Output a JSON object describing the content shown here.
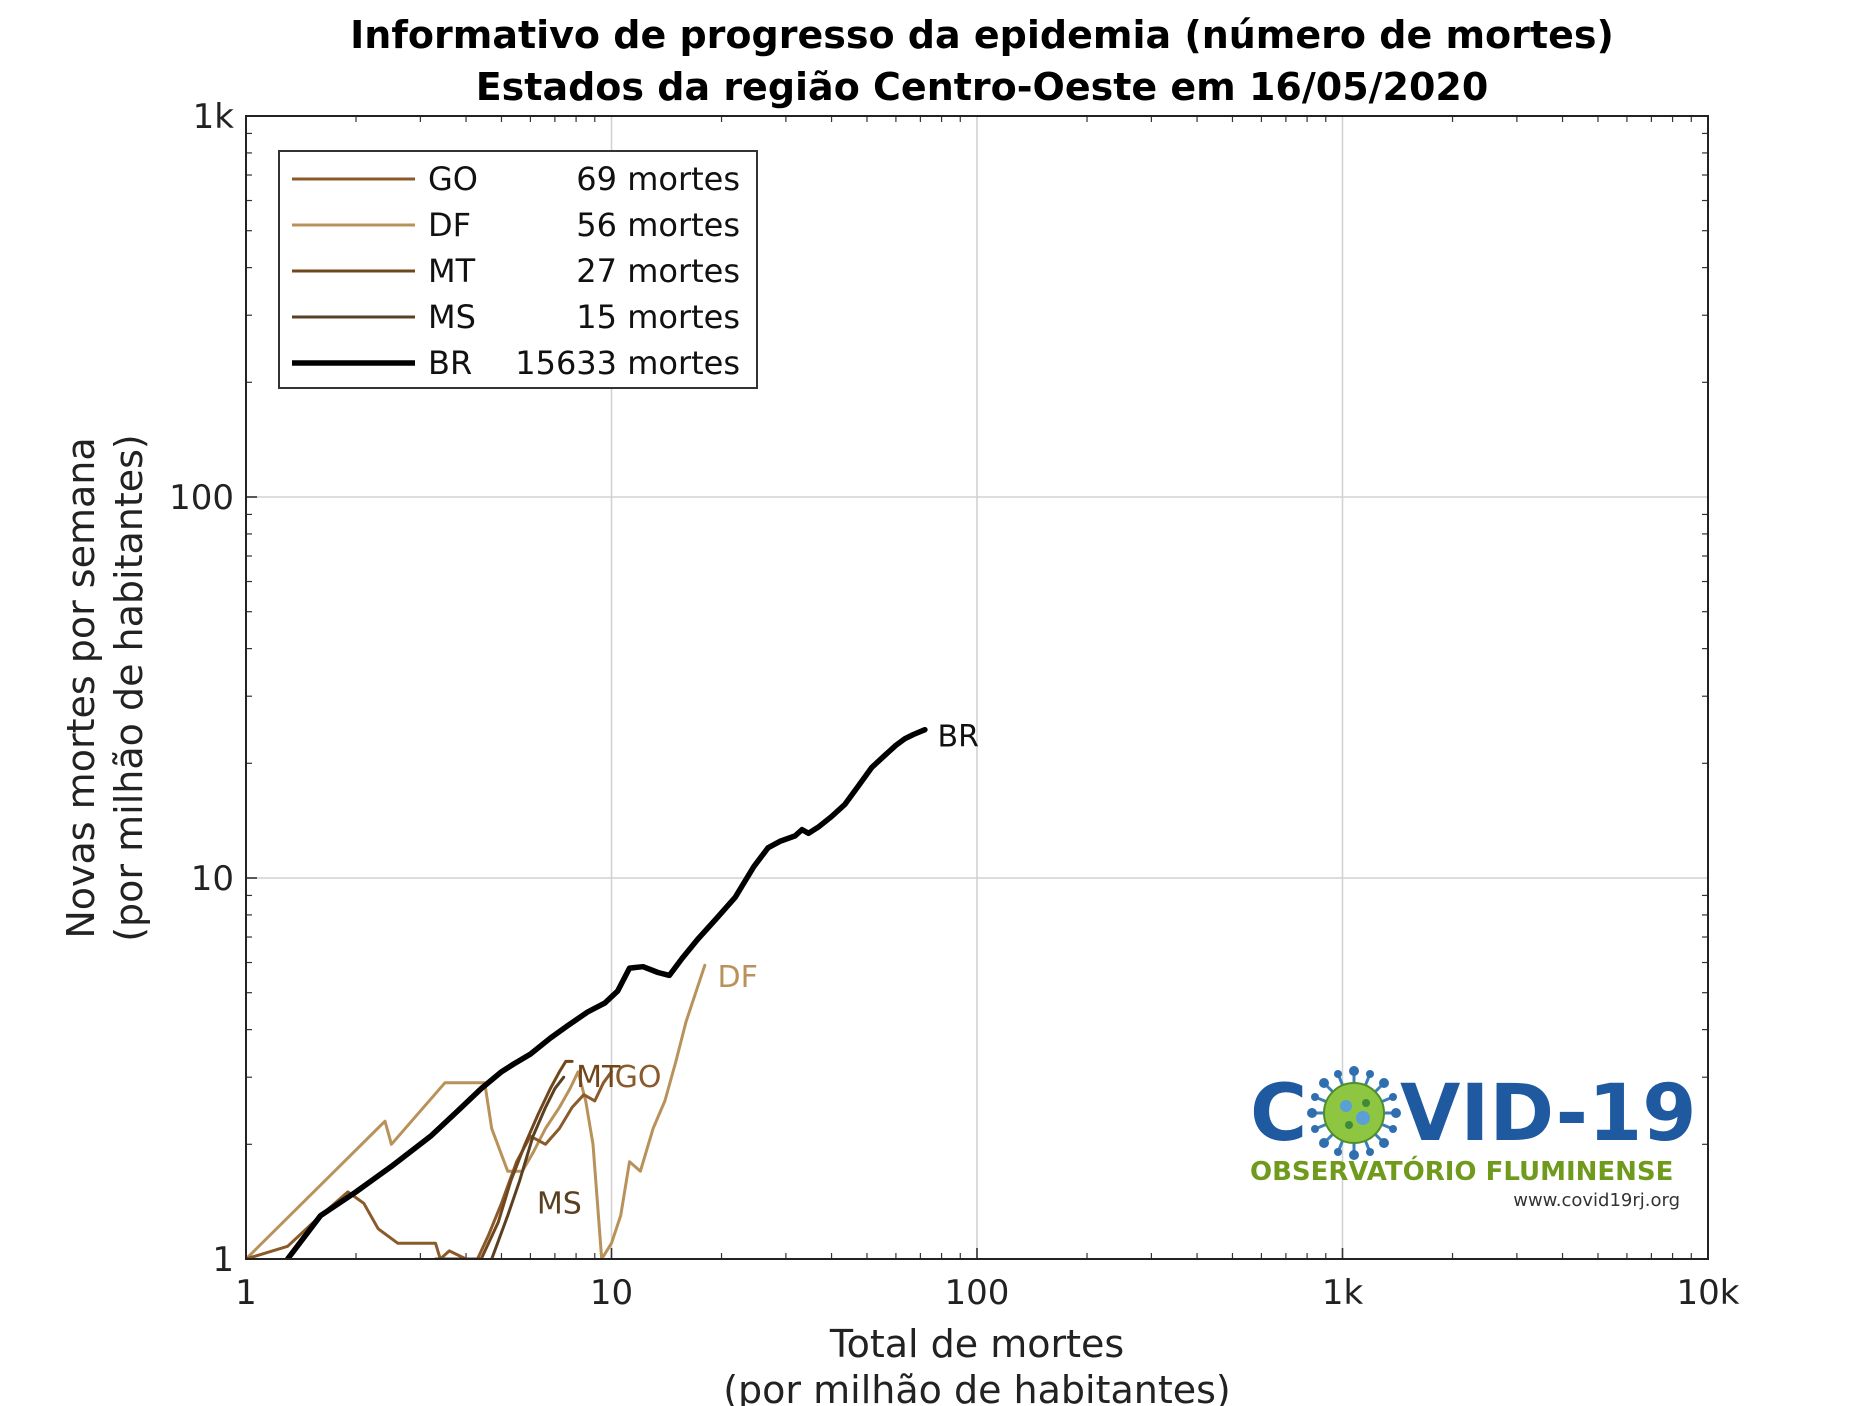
{
  "chart_data": {
    "type": "line",
    "title": "Informativo de progresso da epidemia (número de mortes)",
    "subtitle": "Estados da região Centro-Oeste em 16/05/2020",
    "xlabel": "Total de mortes",
    "xlabel2": "(por milhão de habitantes)",
    "ylabel": "Novas mortes por semana",
    "ylabel2": "(por milhão de habitantes)",
    "xscale": "log",
    "yscale": "log",
    "xlim": [
      1,
      10000
    ],
    "ylim": [
      1,
      1000
    ],
    "xticks": [
      {
        "v": 1,
        "label": "1"
      },
      {
        "v": 10,
        "label": "10"
      },
      {
        "v": 100,
        "label": "100"
      },
      {
        "v": 1000,
        "label": "1k"
      },
      {
        "v": 10000,
        "label": "10k"
      }
    ],
    "yticks": [
      {
        "v": 1,
        "label": "1"
      },
      {
        "v": 10,
        "label": "10"
      },
      {
        "v": 100,
        "label": "100"
      },
      {
        "v": 1000,
        "label": "1k"
      }
    ],
    "grid": true,
    "legend_position": "top-left",
    "series": [
      {
        "name": "GO",
        "legend": "69 mortes",
        "color": "#8b5a2b",
        "width": 3,
        "x": [
          1.0,
          1.3,
          1.6,
          1.9,
          2.1,
          2.3,
          2.6,
          3.0,
          3.3,
          3.4,
          3.6,
          4.0,
          4.3,
          4.6,
          5.0,
          5.5,
          6.0,
          6.6,
          7.2,
          7.8,
          8.4,
          9.0,
          9.5,
          10.0
        ],
        "y": [
          1.0,
          1.08,
          1.3,
          1.5,
          1.4,
          1.2,
          1.1,
          1.1,
          1.1,
          1.0,
          1.05,
          1.0,
          1.0,
          1.15,
          1.4,
          1.8,
          2.1,
          2.0,
          2.2,
          2.5,
          2.7,
          2.6,
          2.9,
          3.1
        ]
      },
      {
        "name": "DF",
        "legend": "56 mortes",
        "color": "#b8925a",
        "width": 3,
        "x": [
          1.0,
          2.4,
          2.5,
          3.5,
          4.5,
          4.7,
          5.2,
          5.7,
          6.1,
          6.6,
          7.2,
          7.7,
          8.1,
          8.5,
          8.9,
          9.4,
          10.0,
          10.6,
          11.2,
          12.0,
          13.0,
          14.0,
          15.0,
          16.0,
          17.0,
          18.0
        ],
        "y": [
          1.0,
          2.3,
          2.0,
          2.9,
          2.9,
          2.2,
          1.7,
          1.7,
          1.9,
          2.2,
          2.5,
          2.8,
          3.1,
          2.6,
          2.0,
          1.0,
          1.1,
          1.3,
          1.8,
          1.7,
          2.2,
          2.6,
          3.3,
          4.2,
          5.0,
          5.9
        ]
      },
      {
        "name": "MT",
        "legend": "27 mortes",
        "color": "#70471c",
        "width": 3,
        "x": [
          3.3,
          4.4,
          4.9,
          5.3,
          5.8,
          6.3,
          6.8,
          7.2,
          7.5,
          7.8
        ],
        "y": [
          1.0,
          1.0,
          1.25,
          1.6,
          2.0,
          2.4,
          2.8,
          3.1,
          3.3,
          3.3
        ]
      },
      {
        "name": "MS",
        "legend": "15 mortes",
        "color": "#5a4020",
        "width": 3,
        "x": [
          4.7,
          5.2,
          5.6,
          6.1,
          6.6,
          7.0,
          7.4
        ],
        "y": [
          1.0,
          1.3,
          1.6,
          2.1,
          2.5,
          2.8,
          3.0
        ]
      },
      {
        "name": "BR",
        "legend": "15633 mortes",
        "color": "#000000",
        "width": 5.5,
        "x": [
          1.3,
          1.6,
          2.0,
          2.5,
          3.2,
          3.8,
          4.4,
          5.0,
          5.4,
          6.0,
          6.8,
          7.6,
          8.6,
          9.6,
          10.4,
          11.2,
          12.2,
          13.4,
          14.4,
          15.6,
          17.2,
          19.3,
          21.8,
          24.5,
          26.8,
          29.0,
          31.8,
          33.2,
          34.6,
          36.8,
          40.0,
          43.5,
          47.5,
          51.5,
          56.0,
          60.0,
          63.5,
          67.0,
          72.0
        ],
        "y": [
          1.0,
          1.3,
          1.5,
          1.75,
          2.1,
          2.45,
          2.8,
          3.1,
          3.25,
          3.45,
          3.8,
          4.1,
          4.45,
          4.7,
          5.05,
          5.8,
          5.85,
          5.65,
          5.55,
          6.15,
          6.9,
          7.8,
          8.9,
          10.7,
          12.0,
          12.5,
          12.9,
          13.4,
          13.1,
          13.6,
          14.5,
          15.6,
          17.5,
          19.5,
          21.0,
          22.3,
          23.2,
          23.8,
          24.5
        ]
      }
    ],
    "end_labels": [
      {
        "name": "BR",
        "x": 78,
        "y": 23.5,
        "color": "#111111"
      },
      {
        "name": "DF",
        "x": 19.5,
        "y": 5.5,
        "color": "#b8925a"
      },
      {
        "name": "GO",
        "x": 10.2,
        "y": 3.0,
        "color": "#8b5a2b"
      },
      {
        "name": "MT",
        "x": 8.0,
        "y": 3.0,
        "color": "#70471c"
      },
      {
        "name": "MS",
        "x": 6.25,
        "y": 1.4,
        "color": "#5a4020"
      }
    ]
  },
  "logo": {
    "title_left": "C",
    "title_right": "VID-19",
    "subtitle": "OBSERVATÓRIO FLUMINENSE",
    "url": "www.covid19rj.org",
    "color_primary": "#1f5aa0",
    "color_secondary": "#6f9a1c"
  }
}
